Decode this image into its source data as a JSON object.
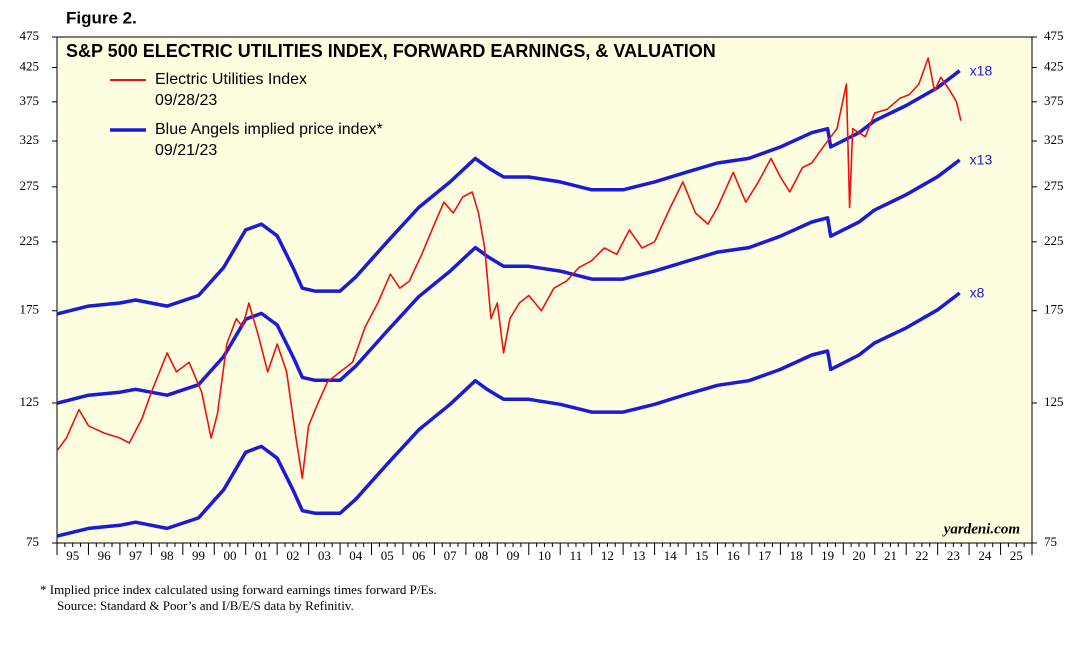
{
  "figure_label": "Figure 2.",
  "chart_data": {
    "type": "line",
    "title": "S&P 500 ELECTRIC UTILITIES INDEX, FORWARD EARNINGS, & VALUATION",
    "log_scale": true,
    "background": "#fefee0",
    "xlim": [
      1995,
      2026
    ],
    "ylim": [
      75,
      475
    ],
    "yticks": [
      75,
      125,
      175,
      225,
      275,
      325,
      375,
      425,
      475
    ],
    "xticks": [
      {
        "value": 1995,
        "label": "95"
      },
      {
        "value": 1996,
        "label": "96"
      },
      {
        "value": 1997,
        "label": "97"
      },
      {
        "value": 1998,
        "label": "98"
      },
      {
        "value": 1999,
        "label": "99"
      },
      {
        "value": 2000,
        "label": "00"
      },
      {
        "value": 2001,
        "label": "01"
      },
      {
        "value": 2002,
        "label": "02"
      },
      {
        "value": 2003,
        "label": "03"
      },
      {
        "value": 2004,
        "label": "04"
      },
      {
        "value": 2005,
        "label": "05"
      },
      {
        "value": 2006,
        "label": "06"
      },
      {
        "value": 2007,
        "label": "07"
      },
      {
        "value": 2008,
        "label": "08"
      },
      {
        "value": 2009,
        "label": "09"
      },
      {
        "value": 2010,
        "label": "10"
      },
      {
        "value": 2011,
        "label": "11"
      },
      {
        "value": 2012,
        "label": "12"
      },
      {
        "value": 2013,
        "label": "13"
      },
      {
        "value": 2014,
        "label": "14"
      },
      {
        "value": 2015,
        "label": "15"
      },
      {
        "value": 2016,
        "label": "16"
      },
      {
        "value": 2017,
        "label": "17"
      },
      {
        "value": 2018,
        "label": "18"
      },
      {
        "value": 2019,
        "label": "19"
      },
      {
        "value": 2020,
        "label": "20"
      },
      {
        "value": 2021,
        "label": "21"
      },
      {
        "value": 2022,
        "label": "22"
      },
      {
        "value": 2023,
        "label": "23"
      },
      {
        "value": 2024,
        "label": "24"
      },
      {
        "value": 2025,
        "label": "25"
      }
    ],
    "series": [
      {
        "name": "Electric Utilities Index",
        "date": "09/28/23",
        "color": "#ee1111",
        "x": [
          1995.0,
          1995.3,
          1995.7,
          1996.0,
          1996.5,
          1997.0,
          1997.3,
          1997.7,
          1998.0,
          1998.5,
          1998.8,
          1999.2,
          1999.6,
          1999.9,
          2000.1,
          2000.4,
          2000.7,
          2000.9,
          2001.1,
          2001.4,
          2001.7,
          2002.0,
          2002.3,
          2002.6,
          2002.8,
          2003.0,
          2003.3,
          2003.6,
          2004.0,
          2004.4,
          2004.8,
          2005.2,
          2005.6,
          2005.9,
          2006.2,
          2006.6,
          2007.0,
          2007.3,
          2007.6,
          2007.9,
          2008.2,
          2008.4,
          2008.6,
          2008.8,
          2009.0,
          2009.2,
          2009.4,
          2009.7,
          2010.0,
          2010.4,
          2010.8,
          2011.2,
          2011.6,
          2012.0,
          2012.4,
          2012.8,
          2013.2,
          2013.6,
          2014.0,
          2014.5,
          2014.9,
          2015.3,
          2015.7,
          2016.0,
          2016.5,
          2016.9,
          2017.3,
          2017.7,
          2018.0,
          2018.3,
          2018.7,
          2019.0,
          2019.4,
          2019.8,
          2020.1,
          2020.2,
          2020.3,
          2020.7,
          2021.0,
          2021.4,
          2021.8,
          2022.1,
          2022.4,
          2022.7,
          2022.9,
          2023.1,
          2023.4,
          2023.6,
          2023.74
        ],
        "values": [
          105,
          110,
          122,
          115,
          112,
          110,
          108,
          118,
          130,
          150,
          140,
          145,
          130,
          110,
          120,
          155,
          170,
          165,
          180,
          160,
          140,
          155,
          140,
          110,
          95,
          115,
          125,
          135,
          140,
          145,
          165,
          180,
          200,
          190,
          195,
          215,
          240,
          260,
          250,
          265,
          270,
          250,
          220,
          170,
          180,
          150,
          170,
          180,
          185,
          175,
          190,
          195,
          205,
          210,
          220,
          215,
          235,
          220,
          225,
          255,
          280,
          250,
          240,
          255,
          290,
          260,
          280,
          305,
          285,
          270,
          295,
          300,
          320,
          340,
          400,
          255,
          340,
          330,
          360,
          365,
          380,
          385,
          400,
          440,
          390,
          410,
          390,
          375,
          350
        ]
      },
      {
        "name": "Blue Angels implied price index*",
        "date": "09/21/23",
        "color": "#1a1adb",
        "x": [
          1995,
          1996,
          1997,
          1997.5,
          1998.5,
          1999.5,
          2000.3,
          2001.0,
          2001.5,
          2002.0,
          2002.5,
          2002.8,
          2003.2,
          2004.0,
          2004.5,
          2005.5,
          2006.5,
          2007.5,
          2008.3,
          2008.7,
          2009.2,
          2010.0,
          2011.0,
          2012.0,
          2013.0,
          2014.0,
          2015.0,
          2016.0,
          2017.0,
          2018.0,
          2019.0,
          2019.5,
          2019.6,
          2020.5,
          2021.0,
          2022.0,
          2023.0,
          2023.7
        ],
        "lines": [
          {
            "label": "x18",
            "values": [
              173,
              178,
              180,
              182,
              178,
              185,
              205,
              235,
              240,
              230,
              205,
              190,
              188,
              188,
              198,
              225,
              255,
              280,
              305,
              295,
              285,
              285,
              280,
              272,
              272,
              280,
              290,
              300,
              305,
              318,
              335,
              340,
              318,
              335,
              350,
              370,
              395,
              420
            ]
          },
          {
            "label": "x13",
            "values": [
              124.9,
              128.6,
              130,
              131.4,
              128.6,
              133.6,
              148.1,
              169.7,
              173.3,
              166.1,
              148.1,
              137.2,
              135.8,
              135.8,
              143,
              162.5,
              184.2,
              202.2,
              220.3,
              213.1,
              205.8,
              205.8,
              202.2,
              196.4,
              196.4,
              202.2,
              209.4,
              216.7,
              220.3,
              229.7,
              241.9,
              245.6,
              229.7,
              241.9,
              252.8,
              267.2,
              285.3,
              303.3
            ]
          },
          {
            "label": "x8",
            "values": [
              76.9,
              79.1,
              80,
              80.9,
              79.1,
              82.2,
              91.1,
              104.4,
              106.7,
              102.2,
              91.1,
              84.4,
              83.6,
              83.6,
              88,
              100,
              113.3,
              124.4,
              135.6,
              131.1,
              126.7,
              126.7,
              124.4,
              120.9,
              120.9,
              124.4,
              128.9,
              133.3,
              135.6,
              141.3,
              148.9,
              151.1,
              141.3,
              148.9,
              155.6,
              164.4,
              175.6,
              186.7
            ]
          }
        ]
      }
    ],
    "watermark": "yardeni.com"
  },
  "footnotes": [
    "*  Implied price index calculated using forward earnings times forward P/Es.",
    "Source: Standard & Poor’s and I/B/E/S data by Refinitiv."
  ]
}
